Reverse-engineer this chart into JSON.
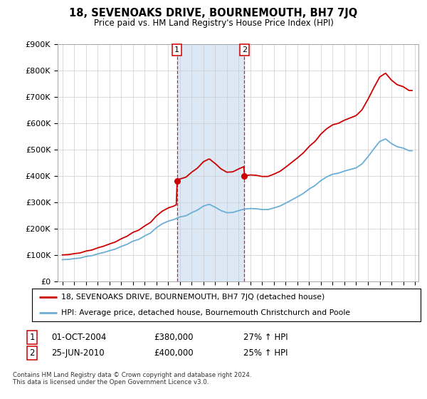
{
  "title": "18, SEVENOAKS DRIVE, BOURNEMOUTH, BH7 7JQ",
  "subtitle": "Price paid vs. HM Land Registry's House Price Index (HPI)",
  "ylim": [
    0,
    900000
  ],
  "yticks": [
    0,
    100000,
    200000,
    300000,
    400000,
    500000,
    600000,
    700000,
    800000,
    900000
  ],
  "ytick_labels": [
    "£0",
    "£100K",
    "£200K",
    "£300K",
    "£400K",
    "£500K",
    "£600K",
    "£700K",
    "£800K",
    "£900K"
  ],
  "hpi_color": "#6baed6",
  "price_color": "#cc0000",
  "shade_color": "#dce9f5",
  "transaction1_year": 2004.75,
  "transaction1_price": 380000,
  "transaction2_year": 2010.48,
  "transaction2_price": 400000,
  "transaction1_label": "01-OCT-2004",
  "transaction1_price_str": "£380,000",
  "transaction1_hpi": "27% ↑ HPI",
  "transaction2_label": "25-JUN-2010",
  "transaction2_price_str": "£400,000",
  "transaction2_hpi": "25% ↑ HPI",
  "legend_line1": "18, SEVENOAKS DRIVE, BOURNEMOUTH, BH7 7JQ (detached house)",
  "legend_line2": "HPI: Average price, detached house, Bournemouth Christchurch and Poole",
  "footer": "Contains HM Land Registry data © Crown copyright and database right 2024.\nThis data is licensed under the Open Government Licence v3.0.",
  "bg_color": "#ffffff",
  "grid_color": "#cccccc",
  "hpi_years": [
    1995,
    1995.5,
    1996,
    1996.5,
    1997,
    1997.5,
    1998,
    1998.5,
    1999,
    1999.5,
    2000,
    2000.5,
    2001,
    2001.5,
    2002,
    2002.5,
    2003,
    2003.5,
    2004,
    2004.5,
    2005,
    2005.5,
    2006,
    2006.5,
    2007,
    2007.5,
    2008,
    2008.5,
    2009,
    2009.5,
    2010,
    2010.5,
    2011,
    2011.5,
    2012,
    2012.5,
    2013,
    2013.5,
    2014,
    2014.5,
    2015,
    2015.5,
    2016,
    2016.5,
    2017,
    2017.5,
    2018,
    2018.5,
    2019,
    2019.5,
    2020,
    2020.5,
    2021,
    2021.5,
    2022,
    2022.5,
    2023,
    2023.5,
    2024,
    2024.5
  ],
  "hpi_values": [
    82000,
    83000,
    86000,
    88000,
    94000,
    97000,
    104000,
    109000,
    116000,
    122000,
    132000,
    140000,
    152000,
    159000,
    172000,
    183000,
    203000,
    218000,
    228000,
    234000,
    244000,
    248000,
    260000,
    270000,
    285000,
    292000,
    281000,
    268000,
    260000,
    261000,
    268000,
    274000,
    276000,
    275000,
    272000,
    272000,
    278000,
    285000,
    296000,
    308000,
    320000,
    333000,
    350000,
    363000,
    382000,
    396000,
    406000,
    410000,
    418000,
    424000,
    430000,
    445000,
    472000,
    502000,
    530000,
    540000,
    522000,
    510000,
    505000,
    495000
  ]
}
